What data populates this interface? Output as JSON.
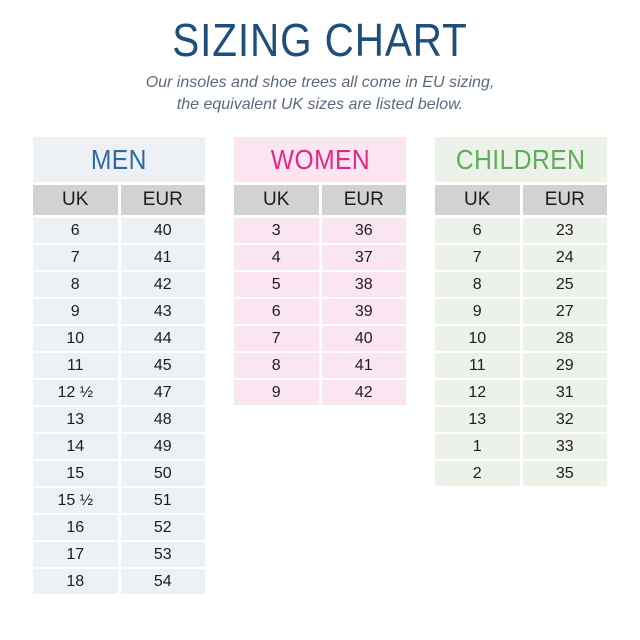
{
  "page": {
    "title": "SIZING CHART",
    "subtitle": [
      "Our insoles and shoe trees all come in EU sizing,",
      "the equivalent UK sizes are listed below."
    ]
  },
  "colors": {
    "background": "#ffffff",
    "title": "#1e4e7b",
    "subtitle": "#5a6a7e",
    "header_bg": "#d2d2d2",
    "cell_text": "#1d1d1d"
  },
  "tables": [
    {
      "title": "MEN",
      "accent": "#2e6b9b",
      "tint": "#edf1f6",
      "columns": [
        "UK",
        "EUR"
      ],
      "rows": [
        [
          "6",
          "40"
        ],
        [
          "7",
          "41"
        ],
        [
          "8",
          "42"
        ],
        [
          "9",
          "43"
        ],
        [
          "10",
          "44"
        ],
        [
          "11",
          "45"
        ],
        [
          "12 ½",
          "47"
        ],
        [
          "13",
          "48"
        ],
        [
          "14",
          "49"
        ],
        [
          "15",
          "50"
        ],
        [
          "15 ½",
          "51"
        ],
        [
          "16",
          "52"
        ],
        [
          "17",
          "53"
        ],
        [
          "18",
          "54"
        ]
      ]
    },
    {
      "title": "WOMEN",
      "accent": "#e2268d",
      "tint": "#fbe5f0",
      "columns": [
        "UK",
        "EUR"
      ],
      "rows": [
        [
          "3",
          "36"
        ],
        [
          "4",
          "37"
        ],
        [
          "5",
          "38"
        ],
        [
          "6",
          "39"
        ],
        [
          "7",
          "40"
        ],
        [
          "8",
          "41"
        ],
        [
          "9",
          "42"
        ]
      ]
    },
    {
      "title": "CHILDREN",
      "accent": "#5fad58",
      "tint": "#ecf2ea",
      "columns": [
        "UK",
        "EUR"
      ],
      "rows": [
        [
          "6",
          "23"
        ],
        [
          "7",
          "24"
        ],
        [
          "8",
          "25"
        ],
        [
          "9",
          "27"
        ],
        [
          "10",
          "28"
        ],
        [
          "11",
          "29"
        ],
        [
          "12",
          "31"
        ],
        [
          "13",
          "32"
        ],
        [
          "1",
          "33"
        ],
        [
          "2",
          "35"
        ]
      ]
    }
  ],
  "chart_data": [
    {
      "type": "table",
      "title": "MEN",
      "columns": [
        "UK",
        "EUR"
      ],
      "rows": [
        [
          6,
          40
        ],
        [
          7,
          41
        ],
        [
          8,
          42
        ],
        [
          9,
          43
        ],
        [
          10,
          44
        ],
        [
          11,
          45
        ],
        [
          "12 1/2",
          47
        ],
        [
          13,
          48
        ],
        [
          14,
          49
        ],
        [
          15,
          50
        ],
        [
          "15 1/2",
          51
        ],
        [
          16,
          52
        ],
        [
          17,
          53
        ],
        [
          18,
          54
        ]
      ]
    },
    {
      "type": "table",
      "title": "WOMEN",
      "columns": [
        "UK",
        "EUR"
      ],
      "rows": [
        [
          3,
          36
        ],
        [
          4,
          37
        ],
        [
          5,
          38
        ],
        [
          6,
          39
        ],
        [
          7,
          40
        ],
        [
          8,
          41
        ],
        [
          9,
          42
        ]
      ]
    },
    {
      "type": "table",
      "title": "CHILDREN",
      "columns": [
        "UK",
        "EUR"
      ],
      "rows": [
        [
          6,
          23
        ],
        [
          7,
          24
        ],
        [
          8,
          25
        ],
        [
          9,
          27
        ],
        [
          10,
          28
        ],
        [
          11,
          29
        ],
        [
          12,
          31
        ],
        [
          13,
          32
        ],
        [
          1,
          33
        ],
        [
          2,
          35
        ]
      ]
    }
  ]
}
